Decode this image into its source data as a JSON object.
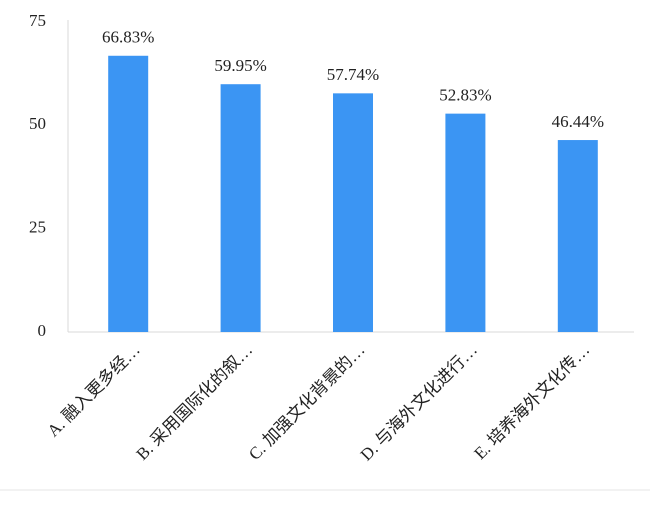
{
  "chart_data": {
    "type": "bar",
    "categories": [
      "A. 融入更多经…",
      "B. 采用国际化的叙…",
      "C. 加强文化背景的…",
      "D. 与海外文化进行…",
      "E. 培养海外文化传…"
    ],
    "values": [
      66.83,
      59.95,
      57.74,
      52.83,
      46.44
    ],
    "value_labels": [
      "66.83%",
      "59.95%",
      "57.74%",
      "52.83%",
      "46.44%"
    ],
    "color": "#3b95f3",
    "ylim": [
      0,
      75
    ],
    "yticks": [
      0,
      25,
      50,
      75
    ],
    "grid": false
  }
}
